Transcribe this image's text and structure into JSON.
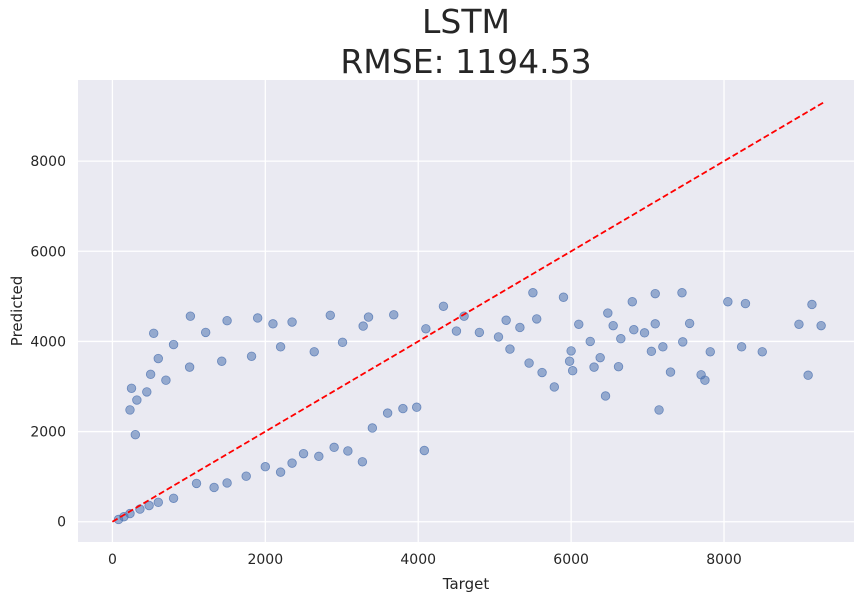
{
  "chart_data": {
    "type": "scatter",
    "title_line1": "LSTM",
    "title_line2": "RMSE: 1194.53",
    "xlabel": "Target",
    "ylabel": "Predicted",
    "xlim": [
      -450,
      9700
    ],
    "ylim": [
      -450,
      9800
    ],
    "x_ticks": [
      0,
      2000,
      4000,
      6000,
      8000
    ],
    "y_ticks": [
      0,
      2000,
      4000,
      6000,
      8000
    ],
    "grid": true,
    "point_color": "#4c72b0",
    "reference_line": {
      "from": [
        0,
        0
      ],
      "to": [
        9300,
        9300
      ],
      "color": "#ff0000",
      "style": "dashed"
    },
    "points": [
      [
        5500,
        5080
      ],
      [
        5900,
        4980
      ],
      [
        6480,
        4630
      ],
      [
        6800,
        4880
      ],
      [
        7100,
        5060
      ],
      [
        7450,
        5080
      ],
      [
        8050,
        4880
      ],
      [
        8280,
        4840
      ],
      [
        9150,
        4820
      ],
      [
        9270,
        4350
      ],
      [
        8980,
        4380
      ],
      [
        8500,
        3770
      ],
      [
        8230,
        3880
      ],
      [
        7820,
        3770
      ],
      [
        7460,
        3990
      ],
      [
        7100,
        4390
      ],
      [
        7050,
        3780
      ],
      [
        7550,
        4400
      ],
      [
        7200,
        3880
      ],
      [
        7750,
        3140
      ],
      [
        7700,
        3260
      ],
      [
        7300,
        3320
      ],
      [
        7150,
        2480
      ],
      [
        6450,
        2790
      ],
      [
        6300,
        3430
      ],
      [
        6620,
        3440
      ],
      [
        6820,
        4260
      ],
      [
        6960,
        4190
      ],
      [
        6650,
        4060
      ],
      [
        6380,
        3640
      ],
      [
        9100,
        3250
      ],
      [
        6020,
        3350
      ],
      [
        6000,
        3790
      ],
      [
        6250,
        4000
      ],
      [
        6100,
        4380
      ],
      [
        6550,
        4350
      ],
      [
        5780,
        2990
      ],
      [
        5620,
        3310
      ],
      [
        5450,
        3520
      ],
      [
        5980,
        3560
      ],
      [
        5200,
        3830
      ],
      [
        5050,
        4100
      ],
      [
        4800,
        4200
      ],
      [
        4500,
        4230
      ],
      [
        4330,
        4780
      ],
      [
        4600,
        4560
      ],
      [
        5150,
        4470
      ],
      [
        5330,
        4310
      ],
      [
        5550,
        4500
      ],
      [
        4100,
        4280
      ],
      [
        4080,
        1580
      ],
      [
        3980,
        2540
      ],
      [
        3800,
        2510
      ],
      [
        3600,
        2410
      ],
      [
        3400,
        2080
      ],
      [
        3270,
        1330
      ],
      [
        3080,
        1570
      ],
      [
        2900,
        1650
      ],
      [
        2700,
        1450
      ],
      [
        2500,
        1510
      ],
      [
        2350,
        1300
      ],
      [
        2200,
        1100
      ],
      [
        2000,
        1220
      ],
      [
        1750,
        1010
      ],
      [
        1500,
        860
      ],
      [
        1330,
        760
      ],
      [
        1100,
        850
      ],
      [
        800,
        520
      ],
      [
        600,
        430
      ],
      [
        480,
        360
      ],
      [
        360,
        280
      ],
      [
        230,
        180
      ],
      [
        150,
        110
      ],
      [
        80,
        50
      ],
      [
        300,
        1930
      ],
      [
        230,
        2480
      ],
      [
        250,
        2960
      ],
      [
        320,
        2700
      ],
      [
        500,
        3270
      ],
      [
        600,
        3620
      ],
      [
        540,
        4180
      ],
      [
        800,
        3930
      ],
      [
        1020,
        4560
      ],
      [
        1220,
        4200
      ],
      [
        1500,
        4460
      ],
      [
        1900,
        4520
      ],
      [
        2100,
        4390
      ],
      [
        2350,
        4430
      ],
      [
        2850,
        4580
      ],
      [
        3350,
        4540
      ],
      [
        3680,
        4590
      ],
      [
        3280,
        4340
      ],
      [
        3010,
        3980
      ],
      [
        2640,
        3770
      ],
      [
        2200,
        3880
      ],
      [
        1820,
        3670
      ],
      [
        1430,
        3560
      ],
      [
        1010,
        3430
      ],
      [
        700,
        3140
      ],
      [
        450,
        2880
      ]
    ]
  }
}
